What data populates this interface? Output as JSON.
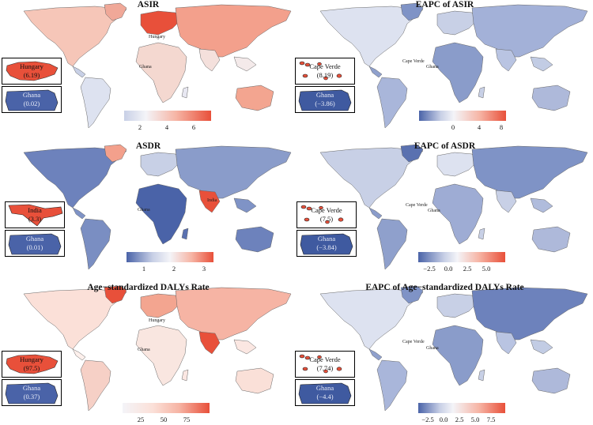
{
  "panels": [
    {
      "title": "ASIR",
      "insets": [
        {
          "country": "Hungary",
          "value": "(6.19)",
          "tone": "high"
        },
        {
          "country": "Ghana",
          "value": "(0.02)",
          "tone": "low"
        }
      ],
      "map_labels": [
        "Hungary",
        "Ghana"
      ],
      "legend_ticks": [
        "2",
        "4",
        "6"
      ],
      "palette": {
        "low": "#4a63a8",
        "mid": "#f4f4f8",
        "high": "#e8503a"
      }
    },
    {
      "title": "EAPC of ASIR",
      "insets": [
        {
          "country": "Cape Verde",
          "value": "(8.19)",
          "tone": "high"
        },
        {
          "country": "Ghana",
          "value": "(−3.86)",
          "tone": "low"
        }
      ],
      "map_labels": [
        "Cape Verde",
        "Ghana"
      ],
      "legend_ticks": [
        "0",
        "4",
        "8"
      ],
      "palette": {
        "low": "#4a63a8",
        "mid": "#f4f4f8",
        "high": "#e8503a"
      }
    },
    {
      "title": "ASDR",
      "insets": [
        {
          "country": "India",
          "value": "(3.3)",
          "tone": "high"
        },
        {
          "country": "Ghana",
          "value": "(0.01)",
          "tone": "low"
        }
      ],
      "map_labels": [
        "India",
        "Ghana"
      ],
      "legend_ticks": [
        "1",
        "2",
        "3"
      ],
      "palette": {
        "low": "#4a63a8",
        "mid": "#f4f4f8",
        "high": "#e8503a"
      }
    },
    {
      "title": "EAPC of ASDR",
      "insets": [
        {
          "country": "Cape Verde",
          "value": "(7.5)",
          "tone": "high"
        },
        {
          "country": "Ghana",
          "value": "(−3.84)",
          "tone": "low"
        }
      ],
      "map_labels": [
        "Cape Verde",
        "Ghana"
      ],
      "legend_ticks": [
        "−2.5",
        "0.0",
        "2.5",
        "5.0"
      ],
      "palette": {
        "low": "#4a63a8",
        "mid": "#f4f4f8",
        "high": "#e8503a"
      }
    },
    {
      "title": "Age−standardized DALYs Rate",
      "insets": [
        {
          "country": "Hungary",
          "value": "(97.5)",
          "tone": "high"
        },
        {
          "country": "Ghana",
          "value": "(0.37)",
          "tone": "low"
        }
      ],
      "map_labels": [
        "Hungary",
        "Ghana"
      ],
      "legend_ticks": [
        "25",
        "50",
        "75"
      ],
      "palette": {
        "low": "#4a63a8",
        "mid": "#f4f4f8",
        "high": "#e8503a"
      }
    },
    {
      "title": "EAPC of Age−standardized DALYs Rate",
      "insets": [
        {
          "country": "Cape Verde",
          "value": "(7.74)",
          "tone": "high"
        },
        {
          "country": "Ghana",
          "value": "(−4.4)",
          "tone": "low"
        }
      ],
      "map_labels": [
        "Cape Verde",
        "Ghana"
      ],
      "legend_ticks": [
        "−2.5",
        "0.0",
        "2.5",
        "5.0",
        "7.5"
      ],
      "palette": {
        "low": "#4a63a8",
        "mid": "#f4f4f8",
        "high": "#e8503a"
      }
    }
  ]
}
